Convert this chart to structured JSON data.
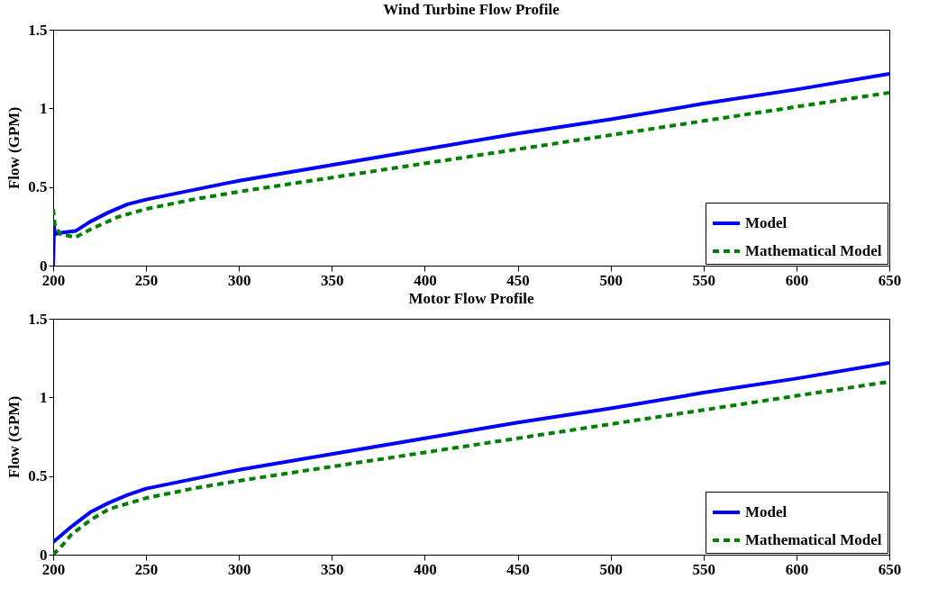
{
  "chart_data": [
    {
      "type": "line",
      "title": "Wind Turbine Flow Profile",
      "ylabel": "Flow (GPM)",
      "xlim": [
        200,
        650
      ],
      "xticks": [
        200,
        250,
        300,
        350,
        400,
        450,
        500,
        550,
        600,
        650
      ],
      "ylim": [
        0,
        1.5
      ],
      "yticks": [
        0,
        0.5,
        1,
        1.5
      ],
      "legend": "bottom right",
      "grid": false,
      "series": [
        {
          "name": "Model",
          "color": "#0000ff",
          "line_style": "solid",
          "x": [
            200,
            200.5,
            201,
            205,
            212,
            220,
            230,
            240,
            250,
            275,
            300,
            350,
            400,
            450,
            500,
            550,
            600,
            650
          ],
          "values": [
            0,
            0.25,
            0.2,
            0.21,
            0.22,
            0.28,
            0.34,
            0.39,
            0.42,
            0.48,
            0.54,
            0.64,
            0.74,
            0.84,
            0.93,
            1.03,
            1.12,
            1.22
          ]
        },
        {
          "name": "Mathematical Model",
          "color": "#008000",
          "line_style": "dashed",
          "x": [
            200,
            201,
            204,
            212,
            220,
            235,
            250,
            275,
            300,
            350,
            400,
            450,
            500,
            550,
            600,
            650
          ],
          "values": [
            0.36,
            0.25,
            0.2,
            0.18,
            0.23,
            0.31,
            0.36,
            0.42,
            0.47,
            0.56,
            0.65,
            0.74,
            0.83,
            0.92,
            1.01,
            1.1
          ]
        }
      ]
    },
    {
      "type": "line",
      "title": "Motor Flow Profile",
      "ylabel": "Flow (GPM)",
      "xlim": [
        200,
        650
      ],
      "xticks": [
        200,
        250,
        300,
        350,
        400,
        450,
        500,
        550,
        600,
        650
      ],
      "ylim": [
        0,
        1.5
      ],
      "yticks": [
        0,
        0.5,
        1,
        1.5
      ],
      "legend": "bottom right",
      "grid": false,
      "series": [
        {
          "name": "Model",
          "color": "#0000ff",
          "line_style": "solid",
          "x": [
            200,
            210,
            220,
            230,
            240,
            250,
            275,
            300,
            350,
            400,
            450,
            500,
            550,
            600,
            650
          ],
          "values": [
            0.08,
            0.18,
            0.27,
            0.33,
            0.38,
            0.42,
            0.48,
            0.54,
            0.64,
            0.74,
            0.84,
            0.93,
            1.03,
            1.12,
            1.22
          ]
        },
        {
          "name": "Mathematical Model",
          "color": "#008000",
          "line_style": "dashed",
          "x": [
            200,
            205,
            210,
            220,
            230,
            250,
            275,
            300,
            350,
            400,
            450,
            500,
            550,
            600,
            650
          ],
          "values": [
            0,
            0.06,
            0.13,
            0.22,
            0.29,
            0.36,
            0.42,
            0.47,
            0.56,
            0.65,
            0.74,
            0.83,
            0.92,
            1.01,
            1.1
          ]
        }
      ]
    }
  ]
}
